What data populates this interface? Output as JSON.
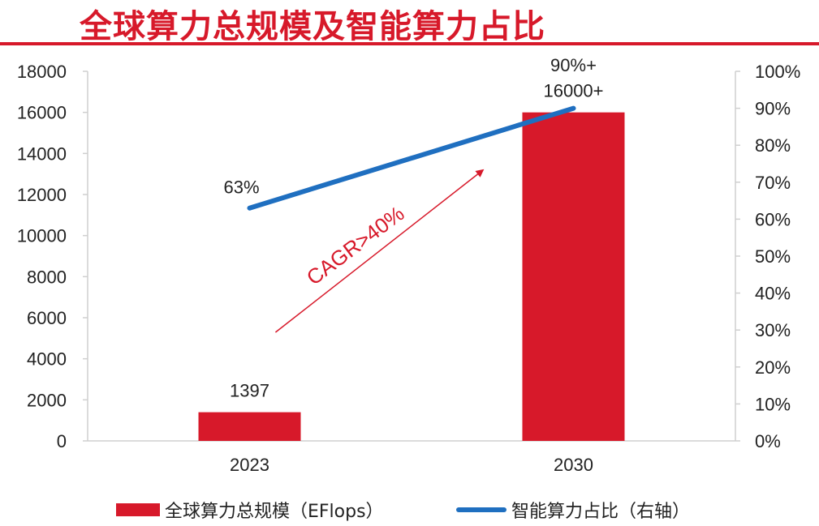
{
  "title": "全球算力总规模及智能算力占比",
  "chart_data": {
    "type": "bar+line",
    "categories": [
      "2023",
      "2030"
    ],
    "left_axis": {
      "min": 0,
      "max": 18000,
      "ticks": [
        "0",
        "2000",
        "4000",
        "6000",
        "8000",
        "10000",
        "12000",
        "14000",
        "16000",
        "18000"
      ]
    },
    "right_axis": {
      "min": 0,
      "max": 100,
      "ticks": [
        "0%",
        "10%",
        "20%",
        "30%",
        "40%",
        "50%",
        "60%",
        "70%",
        "80%",
        "90%",
        "100%"
      ]
    },
    "series": [
      {
        "name": "全球算力总规模（EFlops）",
        "kind": "bar",
        "axis": "left",
        "color": "#d7192a",
        "values": [
          1397,
          16000
        ],
        "labels": [
          "1397",
          "16000+"
        ]
      },
      {
        "name": "智能算力占比（右轴）",
        "kind": "line",
        "axis": "right",
        "color": "#1f6fc0",
        "values": [
          63,
          90
        ],
        "labels": [
          "63%",
          "90%+"
        ]
      }
    ],
    "annotation": {
      "text": "CAGR>40%",
      "color": "#d7192a"
    },
    "legend": "bottom",
    "grid": false
  }
}
